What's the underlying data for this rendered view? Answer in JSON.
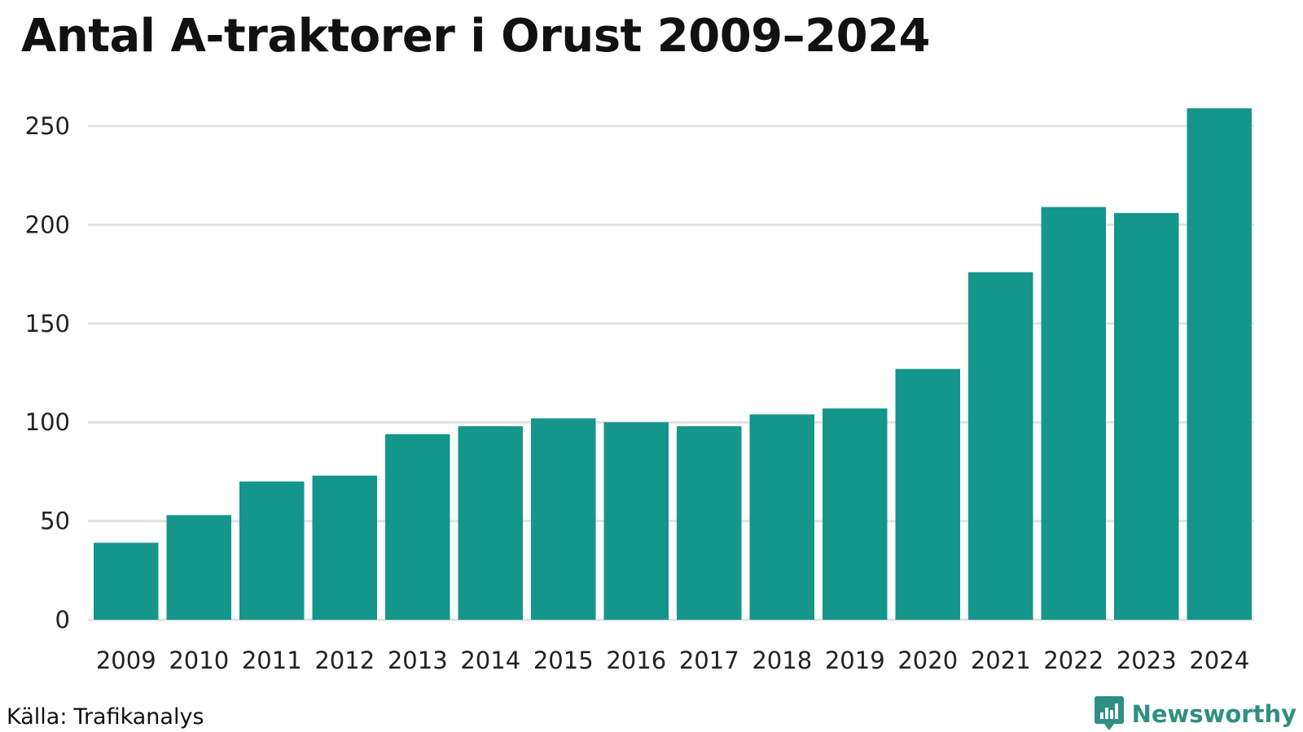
{
  "chart_data": {
    "type": "bar",
    "title": "Antal A-traktorer i Orust 2009–2024",
    "xlabel": "",
    "ylabel": "",
    "categories": [
      "2009",
      "2010",
      "2011",
      "2012",
      "2013",
      "2014",
      "2015",
      "2016",
      "2017",
      "2018",
      "2019",
      "2020",
      "2021",
      "2022",
      "2023",
      "2024"
    ],
    "values": [
      39,
      53,
      70,
      73,
      94,
      98,
      102,
      100,
      98,
      104,
      107,
      127,
      176,
      209,
      206,
      259
    ],
    "ylim": [
      0,
      260
    ],
    "yticks": [
      0,
      50,
      100,
      150,
      200,
      250
    ],
    "grid": true,
    "legend": "none",
    "bar_color": "#14968a",
    "grid_color": "#e2e2e6"
  },
  "footer": {
    "source_label": "Källa:",
    "source_name": "Trafikanalys",
    "brand_name": "Newsworthy",
    "brand_icon": "newsworthy-chart-badge-icon",
    "brand_color": "#2f8f83"
  }
}
